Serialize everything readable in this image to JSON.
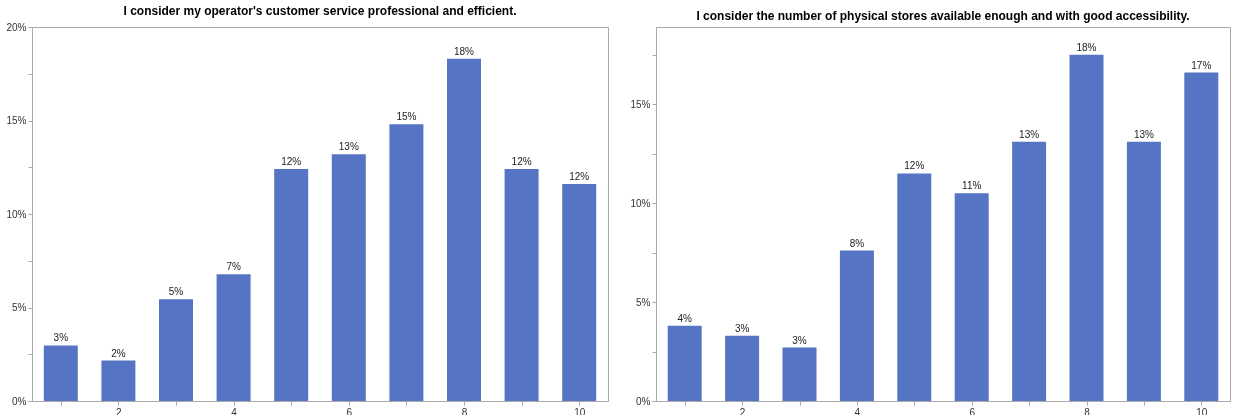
{
  "chart_data": [
    {
      "type": "bar",
      "title": "I consider my operator's customer service professional and efficient.",
      "x": [
        1,
        2,
        3,
        4,
        5,
        6,
        7,
        8,
        9,
        10
      ],
      "color": "#5575c4",
      "values": [
        2.97,
        2.16,
        5.44,
        6.78,
        12.4,
        13.2,
        14.8,
        18.3,
        12.4,
        11.6
      ],
      "value_labels": [
        "3%",
        "2%",
        "5%",
        "7%",
        "12%",
        "13%",
        "15%",
        "18%",
        "12%",
        "12%"
      ],
      "xlim": [
        0.5,
        10.5
      ],
      "xticks": [
        {
          "value": 1,
          "label": null
        },
        2,
        {
          "value": 3,
          "label": null
        },
        4,
        {
          "value": 5,
          "label": null
        },
        6,
        {
          "value": 7,
          "label": null
        },
        8,
        {
          "value": 9,
          "label": null
        },
        10
      ],
      "ylim": [
        0,
        20
      ],
      "yticks": [
        {
          "value": 0,
          "label": "0%"
        },
        {
          "value": 2.5,
          "label": null
        },
        {
          "value": 5,
          "label": "5%"
        },
        {
          "value": 7.5,
          "label": null
        },
        {
          "value": 10,
          "label": "10%"
        },
        {
          "value": 12.5,
          "label": null
        },
        {
          "value": 15,
          "label": "15%"
        },
        {
          "value": 17.5,
          "label": null
        },
        {
          "value": 20,
          "label": "20%"
        }
      ],
      "grid": false
    },
    {
      "type": "bar",
      "title": "I consider the number of physical stores available enough and with good accessibility.",
      "x": [
        1,
        2,
        3,
        4,
        5,
        6,
        7,
        8,
        9,
        10
      ],
      "color": "#5575c4",
      "values": [
        3.8,
        3.3,
        2.7,
        7.6,
        11.5,
        10.5,
        13.1,
        17.5,
        13.1,
        16.6
      ],
      "value_labels": [
        "4%",
        "3%",
        "3%",
        "8%",
        "12%",
        "11%",
        "13%",
        "18%",
        "13%",
        "17%"
      ],
      "xlim": [
        0.5,
        10.5
      ],
      "xticks": [
        {
          "value": 1,
          "label": null
        },
        2,
        {
          "value": 3,
          "label": null
        },
        4,
        {
          "value": 5,
          "label": null
        },
        6,
        {
          "value": 7,
          "label": null
        },
        8,
        {
          "value": 9,
          "label": null
        },
        10
      ],
      "ylim": [
        0,
        18.9
      ],
      "yticks": [
        {
          "value": 0,
          "label": "0%"
        },
        {
          "value": 2.5,
          "label": null
        },
        {
          "value": 5,
          "label": "5%"
        },
        {
          "value": 7.5,
          "label": null
        },
        {
          "value": 10,
          "label": "10%"
        },
        {
          "value": 12.5,
          "label": null
        },
        {
          "value": 15,
          "label": "15%"
        },
        {
          "value": 17.5,
          "label": null
        }
      ],
      "grid": false
    }
  ]
}
